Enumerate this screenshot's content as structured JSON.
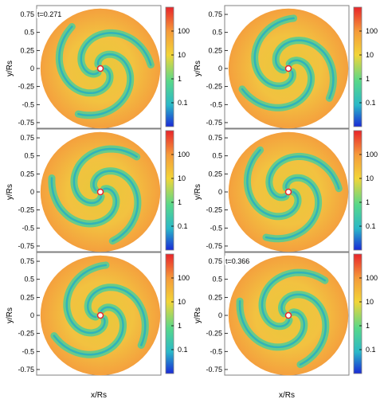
{
  "chart_data": [
    {
      "type": "heatmap",
      "xlabel": "x/Rs",
      "ylabel": "y/Rs",
      "annotation": "t=0.271",
      "xlim": [
        -0.85,
        0.85
      ],
      "ylim": [
        -0.85,
        0.85
      ],
      "yticks": [
        "0.75",
        "0.5",
        "0.25",
        "0",
        "-0.25",
        "-0.5",
        "-0.75"
      ],
      "colorbar_ticks": [
        "100",
        "10",
        "1",
        "0.1"
      ],
      "colorbar_range": [
        0.01,
        1000
      ],
      "colorbar_scale": "log",
      "colors": [
        "#1a2ad6",
        "#2ab8c8",
        "#58d88a",
        "#f2d538",
        "#f59a3a",
        "#e8242a"
      ]
    },
    {
      "type": "heatmap",
      "xlabel": "x/Rs",
      "ylabel": "y/Rs",
      "annotation": "",
      "xlim": [
        -0.85,
        0.85
      ],
      "ylim": [
        -0.85,
        0.85
      ],
      "yticks": [
        "0.75",
        "0.5",
        "0.25",
        "0",
        "-0.25",
        "-0.5",
        "-0.75"
      ],
      "colorbar_ticks": [
        "100",
        "10",
        "1",
        "0.1"
      ],
      "colorbar_range": [
        0.01,
        1000
      ],
      "colorbar_scale": "log",
      "colors": [
        "#1a2ad6",
        "#2ab8c8",
        "#58d88a",
        "#f2d538",
        "#f59a3a",
        "#e8242a"
      ]
    },
    {
      "type": "heatmap",
      "xlabel": "x/Rs",
      "ylabel": "y/Rs",
      "annotation": "",
      "xlim": [
        -0.85,
        0.85
      ],
      "ylim": [
        -0.85,
        0.85
      ],
      "yticks": [
        "0.75",
        "0.5",
        "0.25",
        "0",
        "-0.25",
        "-0.5",
        "-0.75"
      ],
      "colorbar_ticks": [
        "100",
        "10",
        "1",
        "0.1"
      ],
      "colorbar_range": [
        0.01,
        1000
      ],
      "colorbar_scale": "log",
      "colors": [
        "#1a2ad6",
        "#2ab8c8",
        "#58d88a",
        "#f2d538",
        "#f59a3a",
        "#e8242a"
      ]
    },
    {
      "type": "heatmap",
      "xlabel": "x/Rs",
      "ylabel": "y/Rs",
      "annotation": "",
      "xlim": [
        -0.85,
        0.85
      ],
      "ylim": [
        -0.85,
        0.85
      ],
      "yticks": [
        "0.75",
        "0.5",
        "0.25",
        "0",
        "-0.25",
        "-0.5",
        "-0.75"
      ],
      "colorbar_ticks": [
        "100",
        "10",
        "1",
        "0.1"
      ],
      "colorbar_range": [
        0.01,
        1000
      ],
      "colorbar_scale": "log",
      "colors": [
        "#1a2ad6",
        "#2ab8c8",
        "#58d88a",
        "#f2d538",
        "#f59a3a",
        "#e8242a"
      ]
    },
    {
      "type": "heatmap",
      "xlabel": "x/Rs",
      "ylabel": "y/Rs",
      "annotation": "",
      "xlim": [
        -0.85,
        0.85
      ],
      "ylim": [
        -0.85,
        0.85
      ],
      "yticks": [
        "0.75",
        "0.5",
        "0.25",
        "0",
        "-0.25",
        "-0.5",
        "-0.75"
      ],
      "colorbar_ticks": [
        "100",
        "10",
        "1",
        "0.1"
      ],
      "colorbar_range": [
        0.01,
        1000
      ],
      "colorbar_scale": "log",
      "colors": [
        "#1a2ad6",
        "#2ab8c8",
        "#58d88a",
        "#f2d538",
        "#f59a3a",
        "#e8242a"
      ]
    },
    {
      "type": "heatmap",
      "xlabel": "x/Rs",
      "ylabel": "y/Rs",
      "annotation": "t=0.366",
      "xlim": [
        -0.85,
        0.85
      ],
      "ylim": [
        -0.85,
        0.85
      ],
      "yticks": [
        "0.75",
        "0.5",
        "0.25",
        "0",
        "-0.25",
        "-0.5",
        "-0.75"
      ],
      "colorbar_ticks": [
        "100",
        "10",
        "1",
        "0.1"
      ],
      "colorbar_range": [
        0.01,
        1000
      ],
      "colorbar_scale": "log",
      "colors": [
        "#1a2ad6",
        "#2ab8c8",
        "#58d88a",
        "#f2d538",
        "#f59a3a",
        "#e8242a"
      ]
    }
  ]
}
